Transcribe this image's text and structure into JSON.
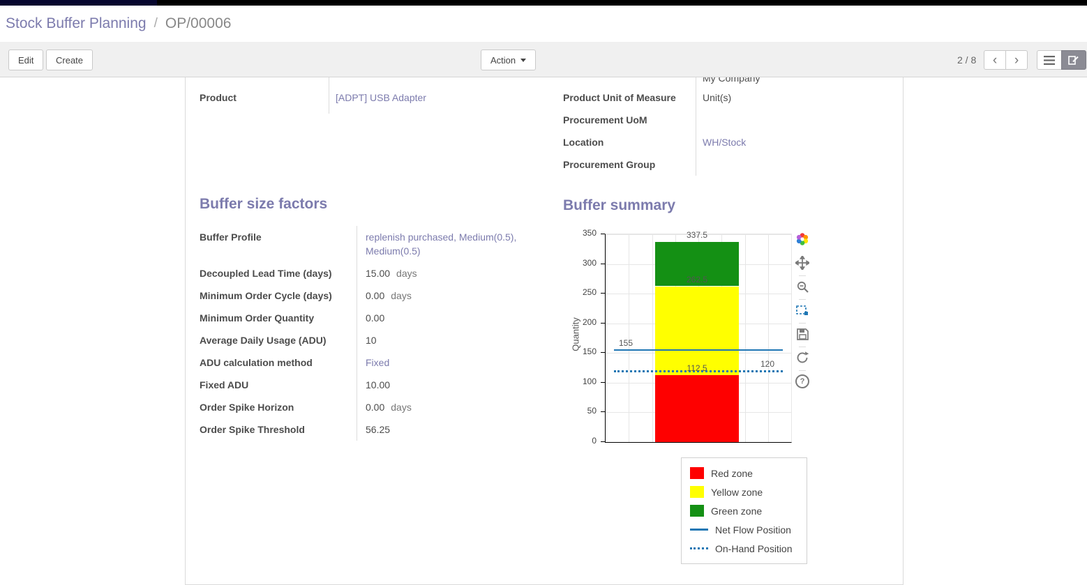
{
  "breadcrumb": {
    "parent": "Stock Buffer Planning",
    "separator": "/",
    "current": "OP/00006"
  },
  "toolbar": {
    "edit": "Edit",
    "create": "Create",
    "action": "Action",
    "pager": "2 / 8"
  },
  "accent_color": "#7c7bad",
  "record": {
    "top_left": [
      {
        "label": "Product",
        "value": "[ADPT] USB Adapter",
        "type": "link"
      }
    ],
    "top_right_partial_value": "My Company",
    "top_right": [
      {
        "label": "Product Unit of Measure",
        "value": "Unit(s)",
        "type": "text"
      },
      {
        "label": "Procurement UoM",
        "value": "",
        "type": "text"
      },
      {
        "label": "Location",
        "value": "WH/Stock",
        "type": "link"
      },
      {
        "label": "Procurement Group",
        "value": "",
        "type": "text"
      }
    ],
    "sections": {
      "factors": {
        "title": "Buffer size factors",
        "fields": [
          {
            "label": "Buffer Profile",
            "value": "replenish purchased, Medium(0.5), Medium(0.5)",
            "type": "link"
          },
          {
            "label": "Decoupled Lead Time (days)",
            "value": "15.00",
            "unit": "days"
          },
          {
            "label": "Minimum Order Cycle (days)",
            "value": "0.00",
            "unit": "days"
          },
          {
            "label": "Minimum Order Quantity",
            "value": "0.00"
          },
          {
            "label": "Average Daily Usage (ADU)",
            "value": "10"
          },
          {
            "label": "ADU calculation method",
            "value": "Fixed",
            "type": "link"
          },
          {
            "label": "Fixed ADU",
            "value": "10.00"
          },
          {
            "label": "Order Spike Horizon",
            "value": "0.00",
            "unit": "days"
          },
          {
            "label": "Order Spike Threshold",
            "value": "56.25"
          }
        ]
      },
      "summary": {
        "title": "Buffer summary"
      }
    }
  },
  "chart_data": {
    "type": "bar",
    "title": "",
    "ylabel": "Quantity",
    "ylim": [
      0,
      350
    ],
    "yticks": [
      0,
      50,
      100,
      150,
      200,
      250,
      300,
      350
    ],
    "grid": true,
    "stacked_zones": [
      {
        "name": "Red zone",
        "from": 0,
        "to": 112.5,
        "color": "#fe0000"
      },
      {
        "name": "Yellow zone",
        "from": 112.5,
        "to": 262.5,
        "color": "#ffff00"
      },
      {
        "name": "Green zone",
        "from": 262.5,
        "to": 337.5,
        "color": "#149014"
      }
    ],
    "reference_lines": [
      {
        "name": "Net Flow Position",
        "value": 155,
        "style": "solid",
        "color": "#1f77b4"
      },
      {
        "name": "On-Hand Position",
        "value": 120,
        "style": "dotted",
        "color": "#1f77b4"
      }
    ],
    "annotations": [
      {
        "text": "337.5",
        "value": 337.5,
        "anchor": "bar"
      },
      {
        "text": "262.5",
        "value": 262.5,
        "anchor": "bar"
      },
      {
        "text": "112.5",
        "value": 112.5,
        "anchor": "bar"
      },
      {
        "text": "155",
        "value": 155,
        "anchor": "left"
      },
      {
        "text": "120",
        "value": 120,
        "anchor": "right"
      }
    ],
    "legend_position": "bottom-right",
    "legend": [
      {
        "label": "Red zone",
        "swatch": "square",
        "color": "#fe0000"
      },
      {
        "label": "Yellow zone",
        "swatch": "square",
        "color": "#ffff00"
      },
      {
        "label": "Green zone",
        "swatch": "square",
        "color": "#149014"
      },
      {
        "label": "Net Flow Position",
        "swatch": "line",
        "color": "#1f77b4"
      },
      {
        "label": "On-Hand Position",
        "swatch": "dotted",
        "color": "#1f77b4"
      }
    ]
  }
}
